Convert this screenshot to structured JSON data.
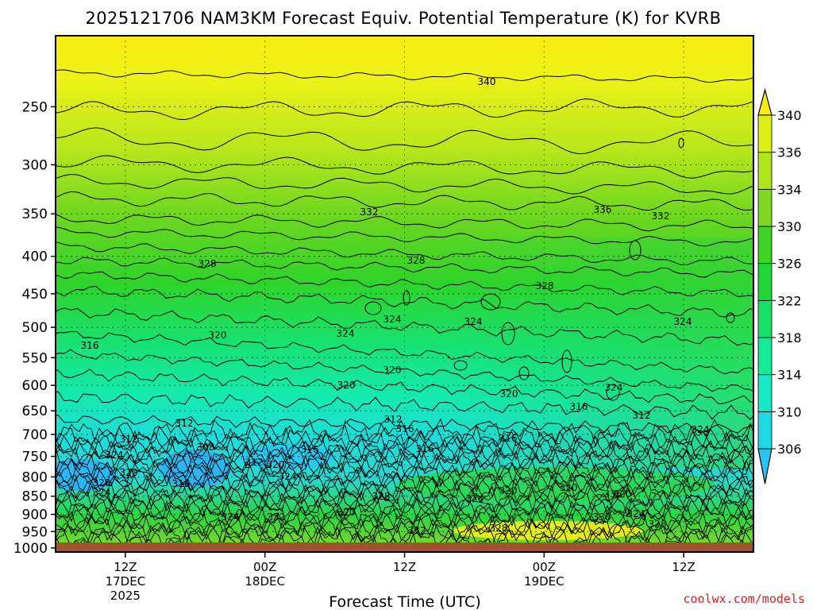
{
  "chart_data": {
    "type": "heatmap",
    "title": "2025121706 NAM3KM Forecast Equiv. Potential Temperature (K) for KVRB",
    "xlabel": "Forecast Time (UTC)",
    "ylabel": "",
    "y_scale": "log",
    "y_reversed": true,
    "ylim": [
      1013,
      200
    ],
    "y_ticks": [
      "250",
      "300",
      "350",
      "400",
      "450",
      "500",
      "550",
      "600",
      "650",
      "700",
      "750",
      "800",
      "850",
      "900",
      "950",
      "1000"
    ],
    "x_ticks": [
      {
        "label": "12Z",
        "date": "17DEC",
        "year": "2025",
        "hour": 6
      },
      {
        "label": "00Z",
        "date": "18DEC",
        "year": "",
        "hour": 18
      },
      {
        "label": "12Z",
        "date": "",
        "year": "",
        "hour": 30
      },
      {
        "label": "00Z",
        "date": "19DEC",
        "year": "",
        "hour": 42
      },
      {
        "label": "12Z",
        "date": "",
        "year": "",
        "hour": 54
      }
    ],
    "xlim_hours": [
      0,
      60
    ],
    "grid": true,
    "colorbar": {
      "levels": [
        306,
        310,
        314,
        318,
        322,
        326,
        330,
        334,
        336,
        340
      ],
      "tick_labels": [
        "306",
        "310",
        "314",
        "318",
        "322",
        "326",
        "330",
        "334",
        "336",
        "340"
      ],
      "colors": [
        "#29c4f4",
        "#1fd8e4",
        "#18e8c4",
        "#14ea98",
        "#18e06a",
        "#1fd838",
        "#3ed424",
        "#7ed820",
        "#b0e41c",
        "#dcf016",
        "#f8ec12"
      ],
      "extend": "both"
    },
    "contour_labels": [
      "340",
      "336",
      "332",
      "332",
      "328",
      "328",
      "328",
      "324",
      "324",
      "324",
      "324",
      "316",
      "320",
      "320",
      "320",
      "320",
      "316",
      "316",
      "316",
      "312",
      "312",
      "312",
      "308",
      "316",
      "312",
      "316",
      "320",
      "324",
      "324",
      "320",
      "312",
      "320",
      "316",
      "324",
      "324",
      "324",
      "320",
      "328",
      "324",
      "332",
      "336",
      "332",
      "328",
      "336",
      "328",
      "324",
      "320",
      "320",
      "324",
      "320"
    ],
    "surface_color": "#a0522d"
  },
  "credit": "coolwx.com/models"
}
